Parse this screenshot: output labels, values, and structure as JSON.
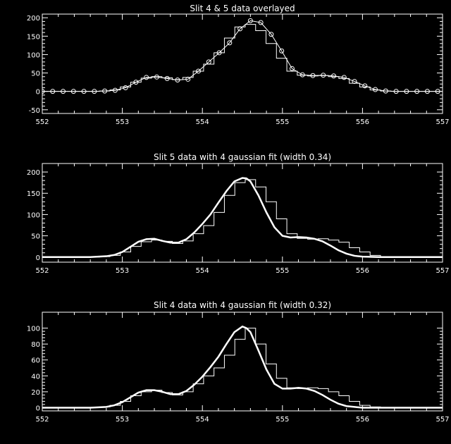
{
  "colors": {
    "background": "#000000",
    "foreground": "#ffffff"
  },
  "chart_data": [
    {
      "type": "line",
      "title": "Slit 4 & 5 data overlayed",
      "xlim": [
        552,
        557
      ],
      "ylim": [
        -60,
        210
      ],
      "xticks": [
        "552",
        "553",
        "554",
        "555",
        "556",
        "557"
      ],
      "yticks": [
        "-50",
        "0",
        "50",
        "100",
        "150",
        "200"
      ],
      "series": [
        {
          "style": "circles-line",
          "x": [
            552.0,
            552.13,
            552.26,
            552.39,
            552.52,
            552.65,
            552.78,
            552.91,
            553.04,
            553.17,
            553.3,
            553.43,
            553.56,
            553.69,
            553.82,
            553.95,
            554.08,
            554.21,
            554.34,
            554.47,
            554.6,
            554.73,
            554.86,
            554.99,
            555.12,
            555.25,
            555.38,
            555.51,
            555.64,
            555.77,
            555.9,
            556.03,
            556.16,
            556.29,
            556.42,
            556.55,
            556.68,
            556.81,
            556.94
          ],
          "y": [
            0,
            0,
            0,
            0,
            0,
            0,
            1,
            3,
            10,
            25,
            38,
            39,
            35,
            31,
            33,
            55,
            80,
            105,
            132,
            170,
            192,
            187,
            155,
            110,
            62,
            45,
            43,
            44,
            42,
            38,
            27,
            15,
            5,
            1,
            0,
            0,
            0,
            0,
            0
          ]
        },
        {
          "style": "step",
          "x": [
            552.0,
            552.13,
            552.26,
            552.39,
            552.52,
            552.65,
            552.78,
            552.91,
            553.04,
            553.17,
            553.3,
            553.43,
            553.56,
            553.69,
            553.82,
            553.95,
            554.08,
            554.21,
            554.34,
            554.47,
            554.6,
            554.73,
            554.86,
            554.99,
            555.12,
            555.25,
            555.38,
            555.51,
            555.64,
            555.77,
            555.9,
            556.03,
            556.16,
            556.29,
            556.42,
            556.55,
            556.68,
            556.81,
            556.94
          ],
          "y": [
            0,
            0,
            0,
            0,
            0,
            0,
            1,
            4,
            12,
            25,
            36,
            40,
            37,
            32,
            38,
            55,
            74,
            105,
            145,
            175,
            182,
            165,
            130,
            90,
            55,
            44,
            42,
            43,
            40,
            35,
            22,
            12,
            4,
            1,
            0,
            0,
            0,
            0,
            0
          ]
        }
      ]
    },
    {
      "type": "line",
      "title": "Slit 5 data with 4 gaussian fit (width 0.34)",
      "xlim": [
        552,
        557
      ],
      "ylim": [
        -12,
        220
      ],
      "xticks": [
        "552",
        "553",
        "554",
        "555",
        "556",
        "557"
      ],
      "yticks": [
        "0",
        "50",
        "100",
        "150",
        "200"
      ],
      "series": [
        {
          "style": "step",
          "x": [
            552.0,
            552.13,
            552.26,
            552.39,
            552.52,
            552.65,
            552.78,
            552.91,
            553.04,
            553.17,
            553.3,
            553.43,
            553.56,
            553.69,
            553.82,
            553.95,
            554.08,
            554.21,
            554.34,
            554.47,
            554.6,
            554.73,
            554.86,
            554.99,
            555.12,
            555.25,
            555.38,
            555.51,
            555.64,
            555.77,
            555.9,
            556.03,
            556.16,
            556.29,
            556.42,
            556.55,
            556.68,
            556.81,
            556.94
          ],
          "y": [
            0,
            0,
            0,
            0,
            0,
            0,
            1,
            4,
            12,
            25,
            36,
            40,
            37,
            32,
            38,
            55,
            74,
            105,
            145,
            175,
            182,
            165,
            130,
            90,
            55,
            44,
            42,
            43,
            40,
            35,
            22,
            12,
            4,
            1,
            0,
            0,
            0,
            0,
            0
          ]
        },
        {
          "style": "thick-line",
          "x": [
            552.0,
            552.2,
            552.4,
            552.6,
            552.8,
            552.9,
            553.0,
            553.1,
            553.2,
            553.3,
            553.4,
            553.5,
            553.6,
            553.7,
            553.8,
            553.9,
            554.0,
            554.1,
            554.2,
            554.3,
            554.4,
            554.5,
            554.55,
            554.6,
            554.7,
            554.8,
            554.9,
            555.0,
            555.1,
            555.2,
            555.3,
            555.4,
            555.5,
            555.6,
            555.7,
            555.8,
            555.9,
            556.0,
            556.2,
            556.4,
            556.6,
            556.8,
            557.0
          ],
          "y": [
            0,
            0,
            0,
            0,
            2,
            5,
            12,
            24,
            36,
            42,
            43,
            38,
            34,
            34,
            42,
            58,
            78,
            100,
            128,
            155,
            178,
            186,
            185,
            178,
            145,
            105,
            70,
            50,
            46,
            47,
            46,
            43,
            37,
            27,
            16,
            8,
            3,
            1,
            0,
            0,
            0,
            0,
            0
          ]
        }
      ]
    },
    {
      "type": "line",
      "title": "Slit 4 data with 4 gaussian fit (width 0.32)",
      "xlim": [
        552,
        557
      ],
      "ylim": [
        -4,
        120
      ],
      "xticks": [
        "552",
        "553",
        "554",
        "555",
        "556",
        "557"
      ],
      "yticks": [
        "0",
        "20",
        "40",
        "60",
        "80",
        "100"
      ],
      "series": [
        {
          "style": "step",
          "x": [
            552.0,
            552.13,
            552.26,
            552.39,
            552.52,
            552.65,
            552.78,
            552.91,
            553.04,
            553.17,
            553.3,
            553.43,
            553.56,
            553.69,
            553.82,
            553.95,
            554.08,
            554.21,
            554.34,
            554.47,
            554.6,
            554.73,
            554.86,
            554.99,
            555.12,
            555.25,
            555.38,
            555.51,
            555.64,
            555.77,
            555.9,
            556.03,
            556.16,
            556.29,
            556.42,
            556.55,
            556.68,
            556.81,
            556.94
          ],
          "y": [
            0,
            0,
            0,
            0,
            0,
            0,
            1,
            3,
            8,
            15,
            20,
            22,
            19,
            16,
            20,
            30,
            40,
            50,
            66,
            86,
            100,
            80,
            55,
            37,
            25,
            24,
            25,
            24,
            20,
            15,
            8,
            3,
            1,
            0,
            0,
            0,
            0,
            0,
            0
          ]
        },
        {
          "style": "thick-line",
          "x": [
            552.0,
            552.2,
            552.4,
            552.6,
            552.8,
            552.9,
            553.0,
            553.1,
            553.2,
            553.3,
            553.4,
            553.5,
            553.6,
            553.7,
            553.8,
            553.9,
            554.0,
            554.1,
            554.2,
            554.3,
            554.4,
            554.5,
            554.55,
            554.6,
            554.7,
            554.8,
            554.9,
            555.0,
            555.1,
            555.2,
            555.3,
            555.4,
            555.5,
            555.6,
            555.7,
            555.8,
            555.9,
            556.0,
            556.2,
            556.4,
            556.6,
            556.8,
            557.0
          ],
          "y": [
            0,
            0,
            0,
            0,
            1,
            3,
            7,
            13,
            19,
            22,
            22,
            20,
            17,
            17,
            21,
            29,
            39,
            51,
            64,
            80,
            95,
            102,
            100,
            95,
            72,
            48,
            30,
            24,
            24,
            25,
            24,
            21,
            16,
            10,
            5,
            2,
            1,
            0,
            0,
            0,
            0,
            0,
            0
          ]
        }
      ]
    }
  ]
}
